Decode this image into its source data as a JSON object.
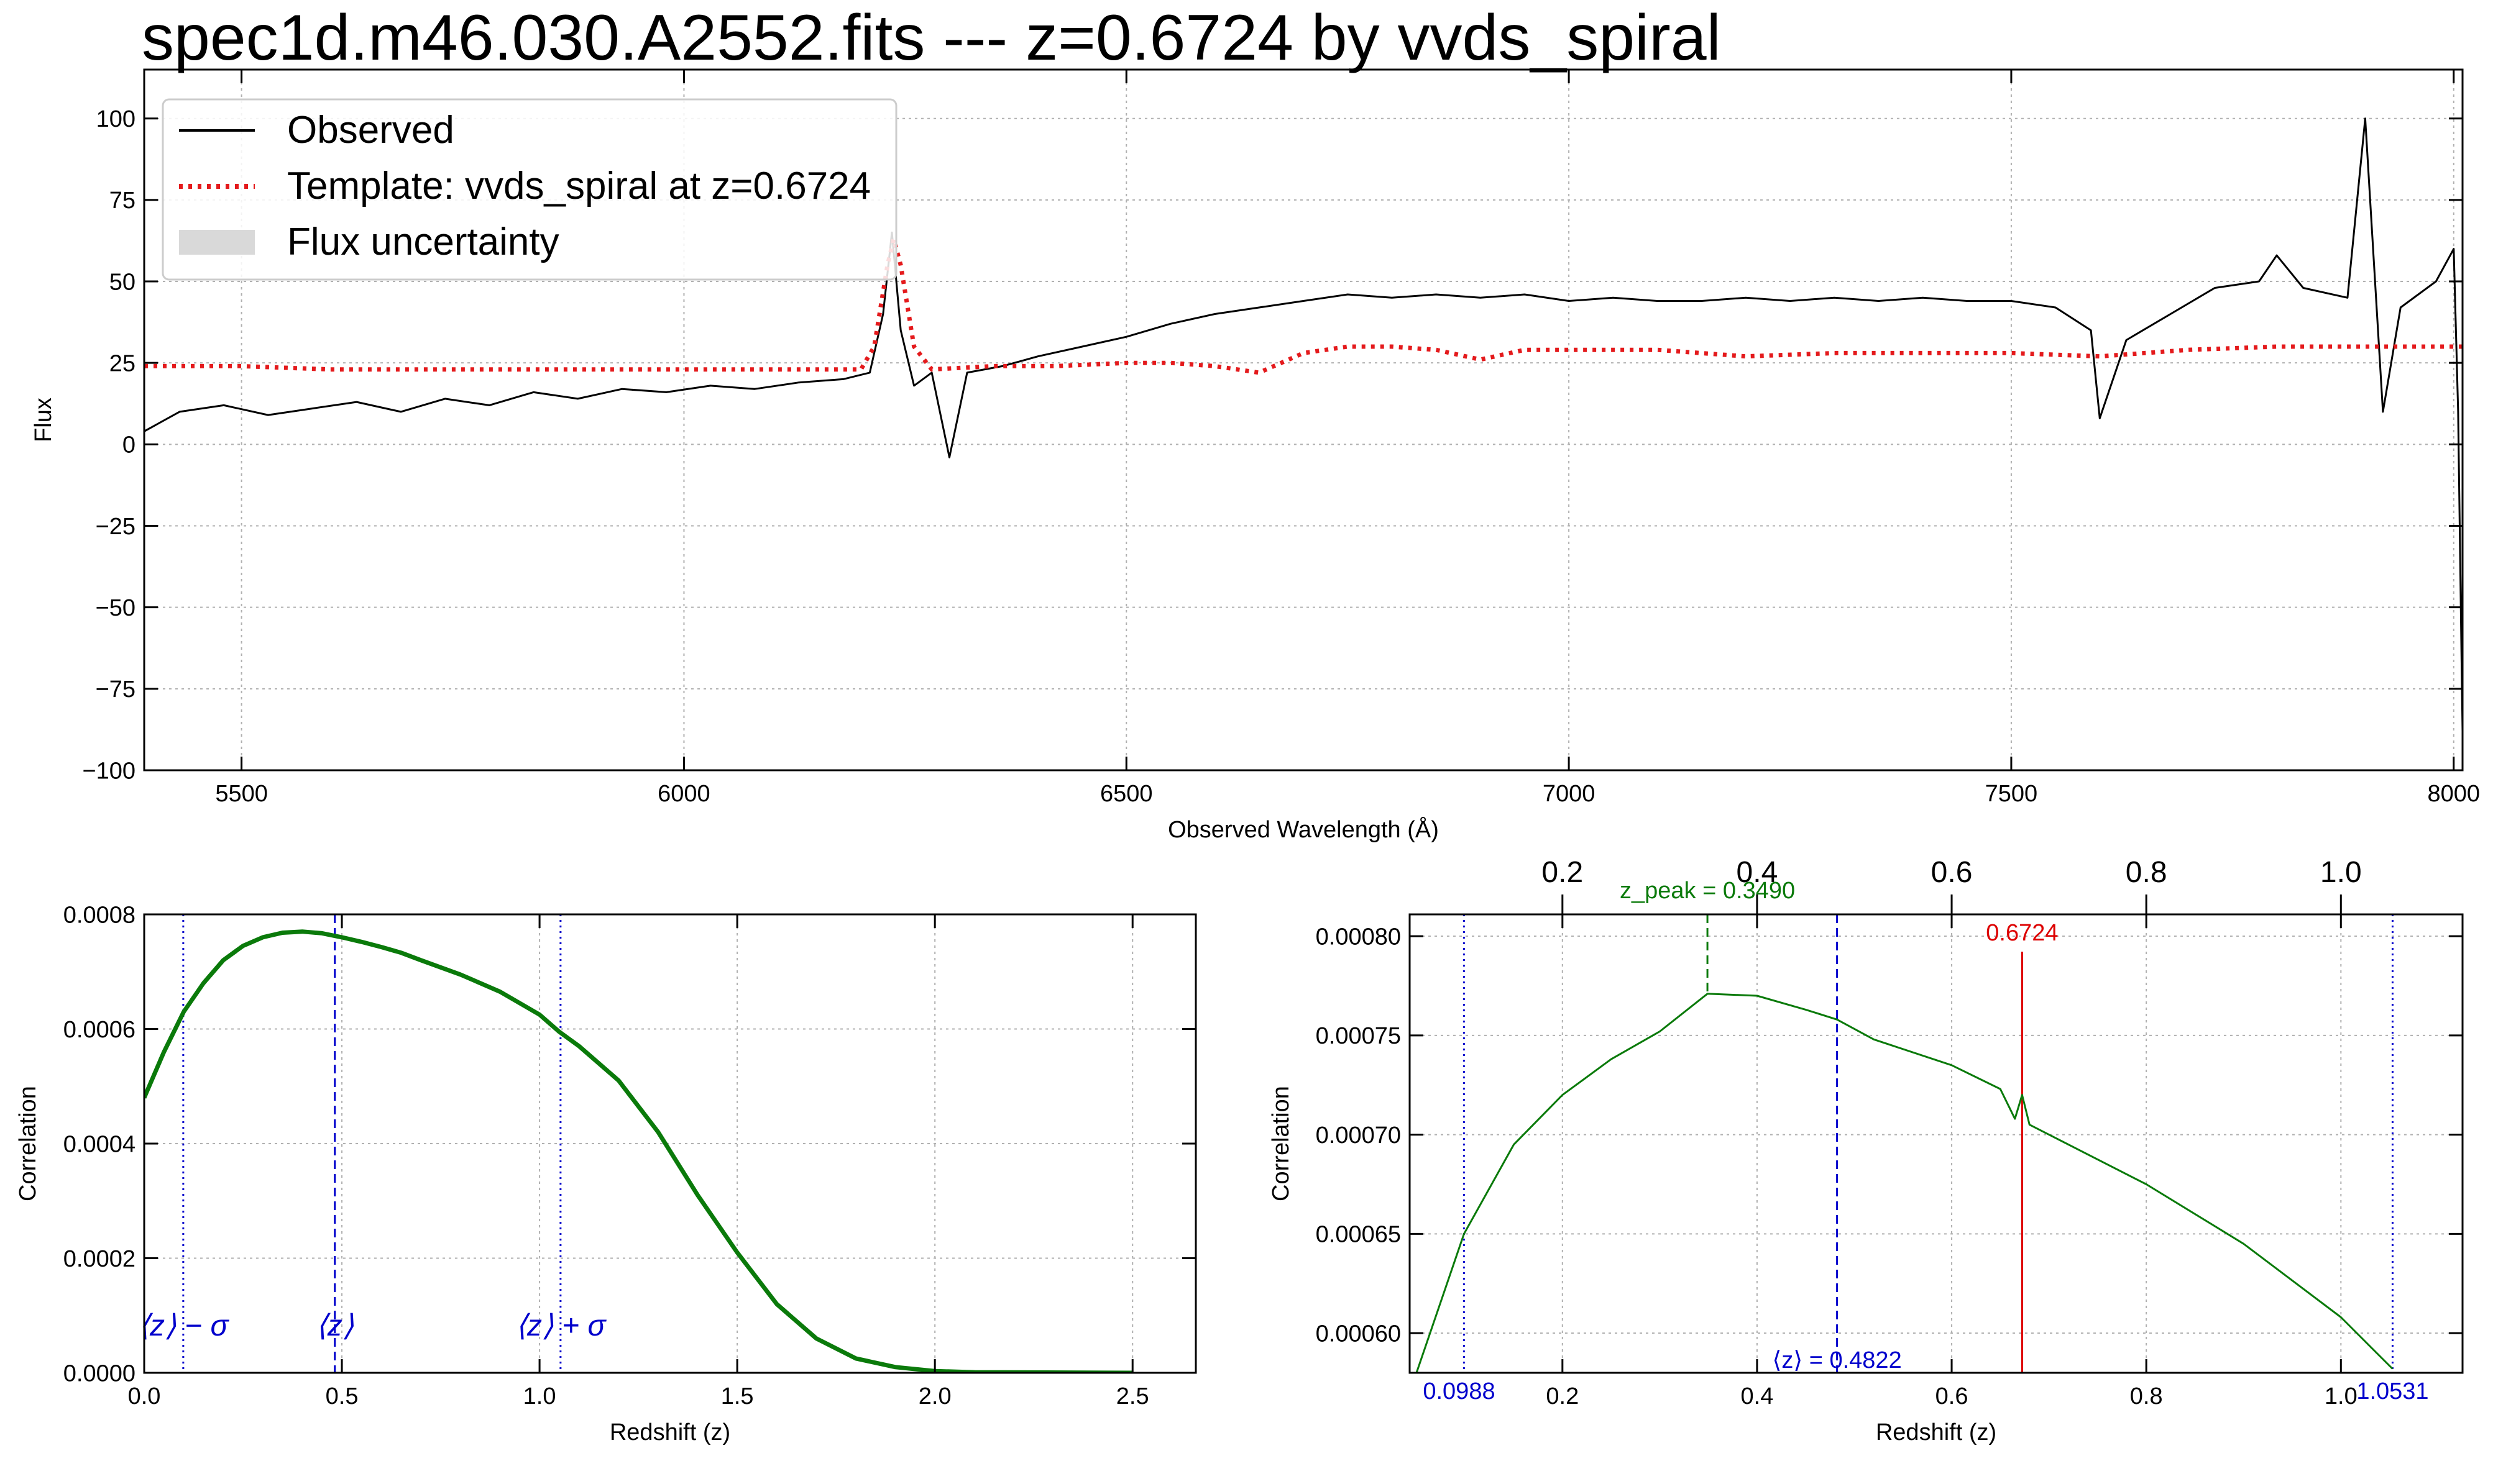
{
  "figure": {
    "title": "spec1d.m46.030.A2552.fits --- z=0.6724 by vvds_spiral"
  },
  "chart_data": [
    {
      "id": "spectrum",
      "type": "line",
      "xlabel": "Observed Wavelength (Å)",
      "ylabel": "Flux",
      "xlim": [
        5390,
        8010
      ],
      "ylim": [
        -100,
        115
      ],
      "xticks": [
        5500,
        6000,
        6500,
        7000,
        7500,
        8000
      ],
      "xtick_labels": [
        "5500",
        "6000",
        "6500",
        "7000",
        "7500",
        "8000"
      ],
      "yticks": [
        -100,
        -75,
        -50,
        -25,
        0,
        25,
        50,
        75,
        100
      ],
      "ytick_labels": [
        "−100",
        "−75",
        "−50",
        "−25",
        "0",
        "25",
        "50",
        "75",
        "100"
      ],
      "grid": true,
      "legend_position": "upper-left",
      "legend": [
        {
          "label": "Observed",
          "style": "solid",
          "color": "#000000"
        },
        {
          "label": "Template: vvds_spiral at z=0.6724",
          "style": "dotted",
          "color": "#e41a1c"
        },
        {
          "label": "Flux uncertainty",
          "style": "patch",
          "color": "#d9d9d9"
        }
      ],
      "series": [
        {
          "name": "Observed",
          "color": "#000000",
          "points": [
            [
              5390,
              4
            ],
            [
              5430,
              10
            ],
            [
              5480,
              12
            ],
            [
              5530,
              9
            ],
            [
              5580,
              11
            ],
            [
              5630,
              13
            ],
            [
              5680,
              10
            ],
            [
              5730,
              14
            ],
            [
              5780,
              12
            ],
            [
              5830,
              16
            ],
            [
              5880,
              14
            ],
            [
              5930,
              17
            ],
            [
              5980,
              16
            ],
            [
              6030,
              18
            ],
            [
              6080,
              17
            ],
            [
              6130,
              19
            ],
            [
              6180,
              20
            ],
            [
              6210,
              22
            ],
            [
              6225,
              40
            ],
            [
              6235,
              65
            ],
            [
              6245,
              35
            ],
            [
              6260,
              18
            ],
            [
              6280,
              22
            ],
            [
              6300,
              -4
            ],
            [
              6320,
              22
            ],
            [
              6360,
              24
            ],
            [
              6400,
              27
            ],
            [
              6450,
              30
            ],
            [
              6500,
              33
            ],
            [
              6550,
              37
            ],
            [
              6600,
              40
            ],
            [
              6650,
              42
            ],
            [
              6700,
              44
            ],
            [
              6750,
              46
            ],
            [
              6800,
              45
            ],
            [
              6850,
              46
            ],
            [
              6900,
              45
            ],
            [
              6950,
              46
            ],
            [
              7000,
              44
            ],
            [
              7050,
              45
            ],
            [
              7100,
              44
            ],
            [
              7150,
              44
            ],
            [
              7200,
              45
            ],
            [
              7250,
              44
            ],
            [
              7300,
              45
            ],
            [
              7350,
              44
            ],
            [
              7400,
              45
            ],
            [
              7450,
              44
            ],
            [
              7500,
              44
            ],
            [
              7550,
              42
            ],
            [
              7590,
              35
            ],
            [
              7600,
              8
            ],
            [
              7630,
              32
            ],
            [
              7680,
              40
            ],
            [
              7730,
              48
            ],
            [
              7780,
              50
            ],
            [
              7800,
              58
            ],
            [
              7830,
              48
            ],
            [
              7880,
              45
            ],
            [
              7900,
              100
            ],
            [
              7920,
              10
            ],
            [
              7940,
              42
            ],
            [
              7980,
              50
            ],
            [
              8000,
              60
            ],
            [
              8005,
              10
            ],
            [
              8010,
              -88
            ]
          ]
        },
        {
          "name": "Template: vvds_spiral at z=0.6724",
          "color": "#e41a1c",
          "points": [
            [
              5390,
              24
            ],
            [
              5500,
              24
            ],
            [
              5600,
              23
            ],
            [
              5700,
              23
            ],
            [
              5800,
              23
            ],
            [
              5900,
              23
            ],
            [
              6000,
              23
            ],
            [
              6100,
              23
            ],
            [
              6200,
              23
            ],
            [
              6215,
              30
            ],
            [
              6230,
              55
            ],
            [
              6237,
              63
            ],
            [
              6245,
              55
            ],
            [
              6260,
              30
            ],
            [
              6280,
              23
            ],
            [
              6350,
              24
            ],
            [
              6420,
              24
            ],
            [
              6500,
              25
            ],
            [
              6550,
              25
            ],
            [
              6600,
              24
            ],
            [
              6650,
              22
            ],
            [
              6700,
              28
            ],
            [
              6750,
              30
            ],
            [
              6800,
              30
            ],
            [
              6850,
              29
            ],
            [
              6900,
              26
            ],
            [
              6950,
              29
            ],
            [
              7000,
              29
            ],
            [
              7100,
              29
            ],
            [
              7200,
              27
            ],
            [
              7300,
              28
            ],
            [
              7400,
              28
            ],
            [
              7500,
              28
            ],
            [
              7600,
              27
            ],
            [
              7700,
              29
            ],
            [
              7800,
              30
            ],
            [
              7900,
              30
            ],
            [
              8010,
              30
            ]
          ]
        }
      ]
    },
    {
      "id": "correlation-full",
      "type": "line",
      "xlabel": "Redshift (z)",
      "ylabel": "Correlation",
      "xlim": [
        0.0,
        2.66
      ],
      "ylim": [
        0.0,
        0.0008
      ],
      "xticks": [
        0.0,
        0.5,
        1.0,
        1.5,
        2.0,
        2.5
      ],
      "xtick_labels": [
        "0.0",
        "0.5",
        "1.0",
        "1.5",
        "2.0",
        "2.5"
      ],
      "yticks": [
        0.0,
        0.0002,
        0.0004,
        0.0006,
        0.0008
      ],
      "ytick_labels": [
        "0.0000",
        "0.0002",
        "0.0004",
        "0.0006",
        "0.0008"
      ],
      "grid": true,
      "series": [
        {
          "name": "",
          "color": "#0a7a0a",
          "points": [
            [
              0.0,
              0.00048
            ],
            [
              0.05,
              0.00056
            ],
            [
              0.1,
              0.00063
            ],
            [
              0.15,
              0.00068
            ],
            [
              0.2,
              0.00072
            ],
            [
              0.25,
              0.000745
            ],
            [
              0.3,
              0.00076
            ],
            [
              0.35,
              0.000768
            ],
            [
              0.4,
              0.00077
            ],
            [
              0.45,
              0.000767
            ],
            [
              0.5,
              0.00076
            ],
            [
              0.55,
              0.000752
            ],
            [
              0.6,
              0.000743
            ],
            [
              0.65,
              0.000733
            ],
            [
              0.7,
              0.00072
            ],
            [
              0.8,
              0.000695
            ],
            [
              0.9,
              0.000665
            ],
            [
              1.0,
              0.000625
            ],
            [
              1.05,
              0.000595
            ],
            [
              1.1,
              0.00057
            ],
            [
              1.2,
              0.00051
            ],
            [
              1.3,
              0.00042
            ],
            [
              1.4,
              0.00031
            ],
            [
              1.5,
              0.00021
            ],
            [
              1.6,
              0.00012
            ],
            [
              1.7,
              6e-05
            ],
            [
              1.8,
              2.5e-05
            ],
            [
              1.9,
              1e-05
            ],
            [
              2.0,
              3e-06
            ],
            [
              2.1,
              1e-06
            ],
            [
              2.5,
              0.0
            ]
          ]
        }
      ],
      "vlines": [
        {
          "x": 0.0988,
          "style": "dotted",
          "color": "#0000cc",
          "label": "⟨z⟩ − σ"
        },
        {
          "x": 0.4822,
          "style": "dashed",
          "color": "#0000cc",
          "label": "⟨z⟩"
        },
        {
          "x": 1.0531,
          "style": "dotted",
          "color": "#0000cc",
          "label": "⟨z⟩ + σ"
        }
      ]
    },
    {
      "id": "correlation-zoom",
      "type": "line",
      "xlabel": "Redshift (z)",
      "ylabel": "Correlation",
      "xlim": [
        0.043,
        1.125
      ],
      "ylim": [
        0.00058,
        0.000811
      ],
      "xticks": [
        0.2,
        0.4,
        0.6,
        0.8,
        1.0
      ],
      "xtick_labels": [
        "0.2",
        "0.4",
        "0.6",
        "0.8",
        "1.0"
      ],
      "top_xticks": [
        0.2,
        0.4,
        0.6,
        0.8,
        1.0
      ],
      "top_xtick_labels": [
        "0.2",
        "0.4",
        "0.6",
        "0.8",
        "1.0"
      ],
      "yticks": [
        0.0006,
        0.00065,
        0.0007,
        0.00075,
        0.0008
      ],
      "ytick_labels": [
        "0.00060",
        "0.00065",
        "0.00070",
        "0.00075",
        "0.00080"
      ],
      "grid": true,
      "series": [
        {
          "name": "",
          "color": "#0a7a0a",
          "points": [
            [
              0.05,
              0.00058
            ],
            [
              0.0988,
              0.00065
            ],
            [
              0.15,
              0.000695
            ],
            [
              0.2,
              0.00072
            ],
            [
              0.25,
              0.000738
            ],
            [
              0.3,
              0.000752
            ],
            [
              0.349,
              0.000771
            ],
            [
              0.4,
              0.00077
            ],
            [
              0.45,
              0.000763
            ],
            [
              0.4822,
              0.000758
            ],
            [
              0.52,
              0.000748
            ],
            [
              0.6,
              0.000735
            ],
            [
              0.65,
              0.000723
            ],
            [
              0.665,
              0.000708
            ],
            [
              0.6724,
              0.00072
            ],
            [
              0.68,
              0.000705
            ],
            [
              0.7,
              0.0007
            ],
            [
              0.8,
              0.000675
            ],
            [
              0.9,
              0.000645
            ],
            [
              1.0,
              0.000608
            ],
            [
              1.0531,
              0.000582
            ]
          ]
        }
      ],
      "annotations": [
        {
          "x": 0.349,
          "label": "z_peak = 0.3490",
          "color": "#0a7a0a",
          "style": "dashed"
        },
        {
          "x": 0.6724,
          "label": "0.6724",
          "color": "#dd0000",
          "style": "solid"
        },
        {
          "x": 0.0988,
          "label": "0.0988",
          "color": "#0000cc",
          "style": "dotted"
        },
        {
          "x": 0.4822,
          "label": "⟨z⟩ =  0.4822",
          "color": "#0000cc",
          "style": "dashed"
        },
        {
          "x": 1.0531,
          "label": "1.0531",
          "color": "#0000cc",
          "style": "dotted"
        }
      ]
    }
  ]
}
